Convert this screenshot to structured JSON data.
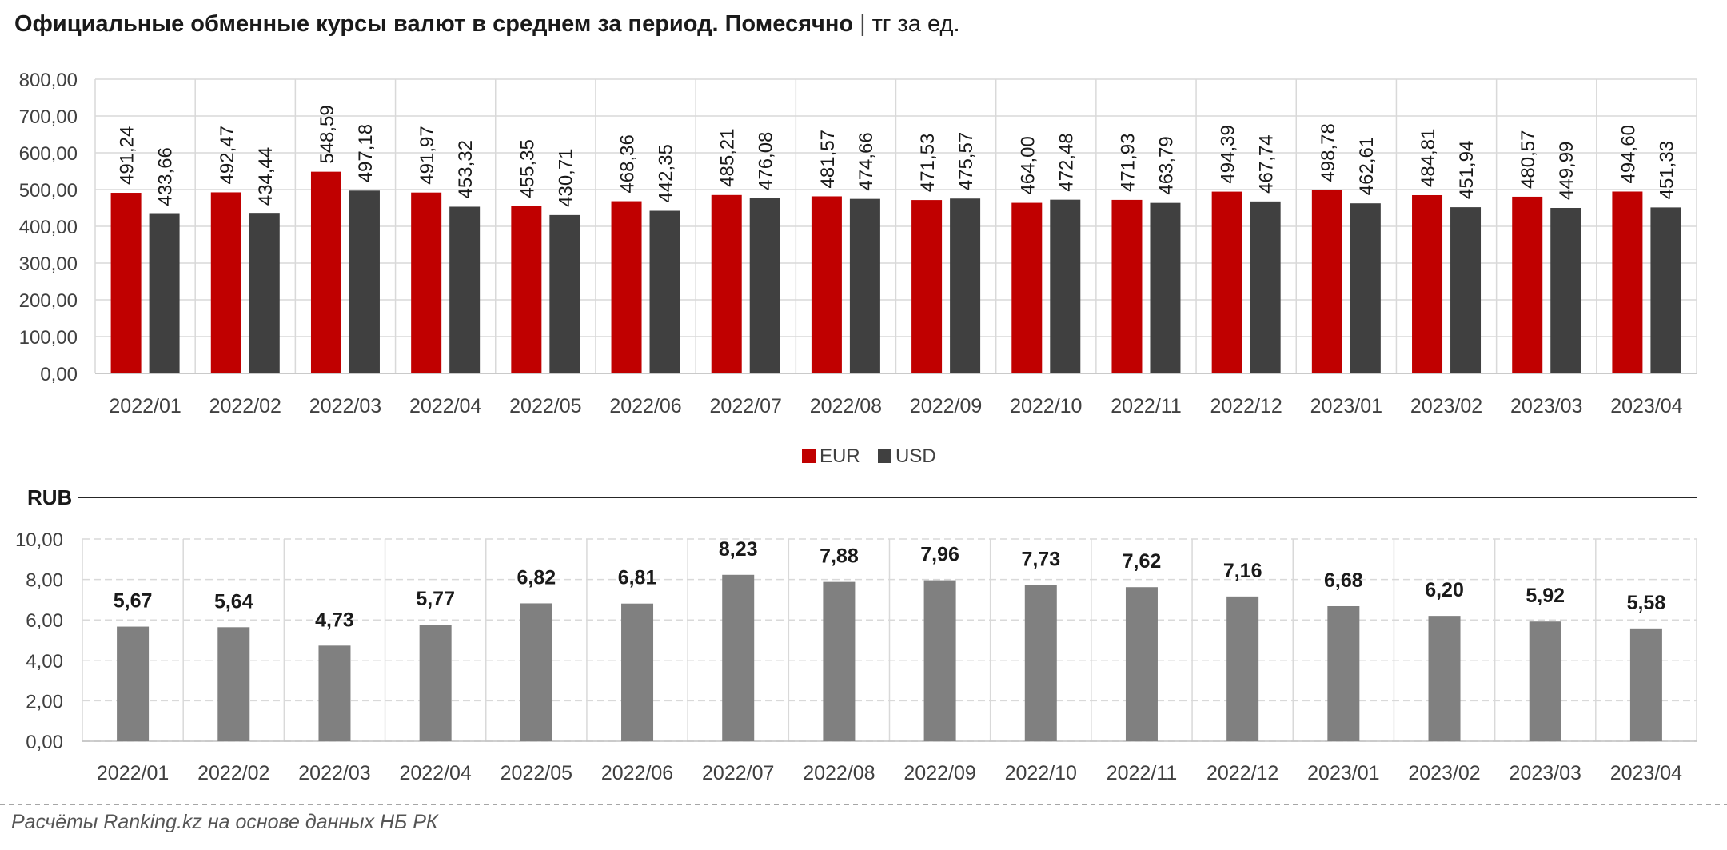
{
  "header": {
    "title": "Официальные обменные курсы валют в среднем за период. Помесячно",
    "separator": "|",
    "unit": "тг за ед."
  },
  "footer": {
    "source": "Расчёты Ranking.kz на основе данных НБ РК"
  },
  "colors": {
    "eur": "#c00000",
    "usd": "#404040",
    "rub": "#808080",
    "grid": "#d9d9d9",
    "rule": "#262626"
  },
  "chart_data": [
    {
      "type": "bar",
      "categories": [
        "2022/01",
        "2022/02",
        "2022/03",
        "2022/04",
        "2022/05",
        "2022/06",
        "2022/07",
        "2022/08",
        "2022/09",
        "2022/10",
        "2022/11",
        "2022/12",
        "2023/01",
        "2023/02",
        "2023/03",
        "2023/04"
      ],
      "series": [
        {
          "name": "EUR",
          "values": [
            491.24,
            492.47,
            548.59,
            491.97,
            455.35,
            468.36,
            485.21,
            481.57,
            471.53,
            464.0,
            471.93,
            494.39,
            498.78,
            484.81,
            480.57,
            494.6
          ],
          "labels": [
            "491,24",
            "492,47",
            "548,59",
            "491,97",
            "455,35",
            "468,36",
            "485,21",
            "481,57",
            "471,53",
            "464,00",
            "471,93",
            "494,39",
            "498,78",
            "484,81",
            "480,57",
            "494,60"
          ]
        },
        {
          "name": "USD",
          "values": [
            433.66,
            434.44,
            497.18,
            453.32,
            430.71,
            442.35,
            476.08,
            474.66,
            475.57,
            472.48,
            463.79,
            467.74,
            462.61,
            451.94,
            449.99,
            451.33
          ],
          "labels": [
            "433,66",
            "434,44",
            "497,18",
            "453,32",
            "430,71",
            "442,35",
            "476,08",
            "474,66",
            "475,57",
            "472,48",
            "463,79",
            "467,74",
            "462,61",
            "451,94",
            "449,99",
            "451,33"
          ]
        }
      ],
      "yticks": [
        "0,00",
        "100,00",
        "200,00",
        "300,00",
        "400,00",
        "500,00",
        "600,00",
        "700,00",
        "800,00"
      ],
      "ylim": [
        0,
        800
      ],
      "legend": "bottom-center",
      "grid": true
    },
    {
      "type": "bar",
      "title": "RUB",
      "categories": [
        "2022/01",
        "2022/02",
        "2022/03",
        "2022/04",
        "2022/05",
        "2022/06",
        "2022/07",
        "2022/08",
        "2022/09",
        "2022/10",
        "2022/11",
        "2022/12",
        "2023/01",
        "2023/02",
        "2023/03",
        "2023/04"
      ],
      "series": [
        {
          "values": [
            5.67,
            5.64,
            4.73,
            5.77,
            6.82,
            6.81,
            8.23,
            7.88,
            7.96,
            7.73,
            7.62,
            7.16,
            6.68,
            6.2,
            5.92,
            5.58
          ],
          "labels": [
            "5,67",
            "5,64",
            "4,73",
            "5,77",
            "6,82",
            "6,81",
            "8,23",
            "7,88",
            "7,96",
            "7,73",
            "7,62",
            "7,16",
            "6,68",
            "6,20",
            "5,92",
            "5,58"
          ]
        }
      ],
      "yticks": [
        "0,00",
        "2,00",
        "4,00",
        "6,00",
        "8,00",
        "10,00"
      ],
      "ylim": [
        0,
        10
      ],
      "grid": true
    }
  ]
}
